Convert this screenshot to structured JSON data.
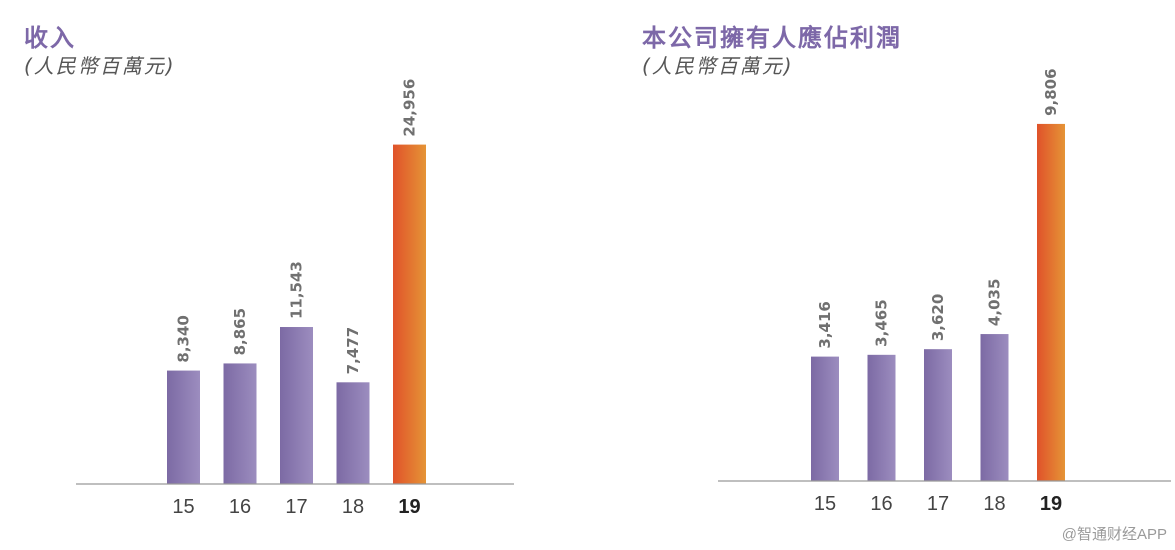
{
  "colors": {
    "bar": "#7c6aa4",
    "bar_light": "#9c8dbf",
    "highlight_top": "#e0522a",
    "highlight_bottom": "#e59436",
    "axis": "#999999",
    "title": "#7d68a8"
  },
  "chart_data": [
    {
      "type": "bar",
      "title": "收入",
      "subtitle": "(人民幣百萬元)",
      "categories": [
        "15",
        "16",
        "17",
        "18",
        "19"
      ],
      "values": [
        8340,
        8865,
        11543,
        7477,
        24956
      ],
      "value_labels": [
        "8,340",
        "8,865",
        "11,543",
        "7,477",
        "24,956"
      ],
      "highlight_index": 4,
      "ylim": [
        0,
        27500
      ],
      "grid": false
    },
    {
      "type": "bar",
      "title": "本公司擁有人應佔利潤",
      "subtitle": "(人民幣百萬元)",
      "categories": [
        "15",
        "16",
        "17",
        "18",
        "19"
      ],
      "values": [
        3416,
        3465,
        3620,
        4035,
        9806
      ],
      "value_labels": [
        "3,416",
        "3,465",
        "3,620",
        "4,035",
        "9,806"
      ],
      "highlight_index": 4,
      "ylim": [
        0,
        10600
      ],
      "grid": false
    }
  ],
  "watermark": "@智通财经APP"
}
